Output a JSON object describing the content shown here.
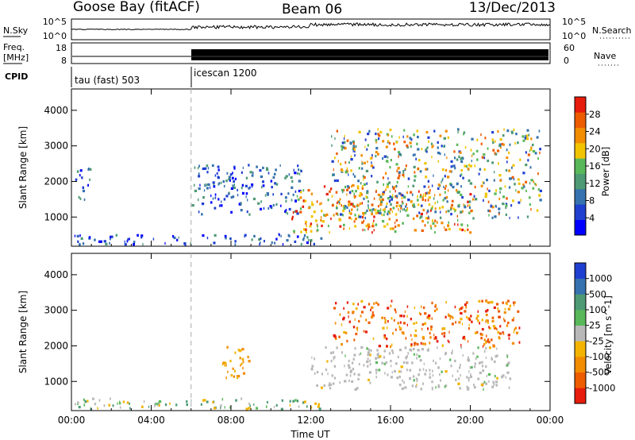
{
  "header": {
    "station": "Goose Bay (fitACF)",
    "beam": "Beam 06",
    "date": "13/Dec/2013"
  },
  "top_panels": {
    "nsky_label": "N.Sky",
    "nsky_ticks": [
      "10^5",
      "10^0"
    ],
    "nsearch_label": "N.Search",
    "nsearch_ticks": [
      "10^5",
      "10^0"
    ],
    "freq_label_1": "Freq.",
    "freq_label_2": "[MHz]",
    "freq_ticks": [
      "18",
      "8"
    ],
    "nave_label": "Nave",
    "nave_ticks": [
      "60",
      "0"
    ],
    "cpid_label": "CPID",
    "cpid_entries": [
      {
        "label": "tau (fast) 503",
        "start_hour": 0
      },
      {
        "label": "icescan 1200",
        "start_hour": 6
      }
    ]
  },
  "chart_data": [
    {
      "type": "heatmap",
      "name": "power",
      "ylabel": "Slant Range [km]",
      "ylim": [
        180,
        4600
      ],
      "y_ticks": [
        1000,
        2000,
        3000,
        4000
      ],
      "xlim_hours": [
        0,
        24
      ],
      "colorbar": {
        "label": "Power [dB]",
        "range": [
          0,
          32
        ],
        "ticks": [
          "4",
          "8",
          "12",
          "16",
          "20",
          "24",
          "28"
        ],
        "colors": [
          "#0000ff",
          "#1f3fd0",
          "#3572ae",
          "#4d9a74",
          "#59b85a",
          "#f2c400",
          "#f28c00",
          "#ee5c00",
          "#e61c0c"
        ]
      },
      "echo_regions": [
        {
          "hours": [
            0,
            12.5
          ],
          "range_km": [
            250,
            550
          ],
          "level": "4-16"
        },
        {
          "hours": [
            0.1,
            0.9
          ],
          "range_km": [
            1500,
            2400
          ],
          "level": "4-12"
        },
        {
          "hours": [
            6,
            11.5
          ],
          "range_km": [
            1100,
            2500
          ],
          "level": "4-16"
        },
        {
          "hours": [
            11,
            20
          ],
          "range_km": [
            600,
            1900
          ],
          "level": "12-28"
        },
        {
          "hours": [
            13,
            23.5
          ],
          "range_km": [
            1000,
            3500
          ],
          "level": "8-24"
        }
      ]
    },
    {
      "type": "heatmap",
      "name": "velocity",
      "ylabel": "Slant Range [km]",
      "ylim": [
        180,
        4600
      ],
      "y_ticks": [
        1000,
        2000,
        3000,
        4000
      ],
      "xlim_hours": [
        0,
        24
      ],
      "x_ticks": [
        "00:00",
        "04:00",
        "08:00",
        "12:00",
        "16:00",
        "20:00",
        "00:00"
      ],
      "xlabel": "Time UT",
      "colorbar": {
        "label": "Velocity [m s^-1]",
        "ticks": [
          "1000",
          "500",
          "100",
          "25",
          "-25",
          "-100",
          "-500",
          "-1000"
        ],
        "colors": [
          "#1f3fd0",
          "#3572ae",
          "#4d9a74",
          "#59b85a",
          "#b8b8b8",
          "#f2b400",
          "#f28c00",
          "#ee5c00",
          "#e61c0c"
        ]
      },
      "echo_regions": [
        {
          "hours": [
            0,
            12.5
          ],
          "range_km": [
            250,
            550
          ],
          "level": "-100 to 100"
        },
        {
          "hours": [
            7.5,
            9
          ],
          "range_km": [
            1100,
            2000
          ],
          "level": "-100 to -500"
        },
        {
          "hours": [
            12,
            22
          ],
          "range_km": [
            800,
            2000
          ],
          "level": "-25 to 25"
        },
        {
          "hours": [
            13,
            22.5
          ],
          "range_km": [
            2000,
            3300
          ],
          "level": "-100 to -500"
        }
      ]
    }
  ]
}
